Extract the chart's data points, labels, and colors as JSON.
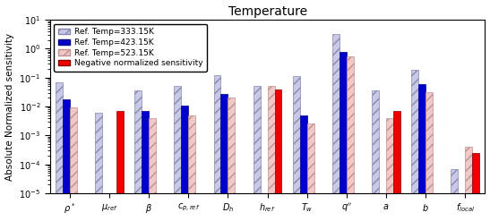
{
  "title": "Temperature",
  "ylabel": "Absolute Normalized sensitivity",
  "cat_labels": [
    "$\\rho^*$",
    "$\\mu_{ref}$",
    "$\\beta$",
    "$c_{p,ref}$",
    "$D_h$",
    "$h_{ref}$",
    "$T_w$",
    "$q''$",
    "$a$",
    "$b$",
    "$f_{local}$"
  ],
  "ref333": [
    0.07,
    0.006,
    0.035,
    0.05,
    0.12,
    0.05,
    0.11,
    3.2,
    0.035,
    0.18,
    7e-05
  ],
  "ref423": [
    0.018,
    0,
    0.007,
    0.011,
    0.028,
    0,
    0.005,
    0.75,
    0,
    0.06,
    0
  ],
  "ref523": [
    0.009,
    0,
    0.004,
    0.005,
    0.02,
    0.05,
    0.0025,
    0.55,
    0.004,
    0.032,
    0.0004
  ],
  "neg": [
    0,
    0.007,
    0,
    0,
    0,
    0.04,
    0,
    0,
    0.007,
    0,
    0.00025
  ],
  "ylim_min": 1e-05,
  "ylim_max": 10,
  "color_333": "#c8c8e8",
  "color_423": "#0000cc",
  "color_523": "#f0c8c8",
  "color_neg": "#ee0000",
  "hatch_333": "///",
  "hatch_523": "///",
  "bar_width": 0.18,
  "legend_fontsize": 6.5,
  "tick_fontsize": 7,
  "ylabel_fontsize": 7.5,
  "title_fontsize": 10
}
